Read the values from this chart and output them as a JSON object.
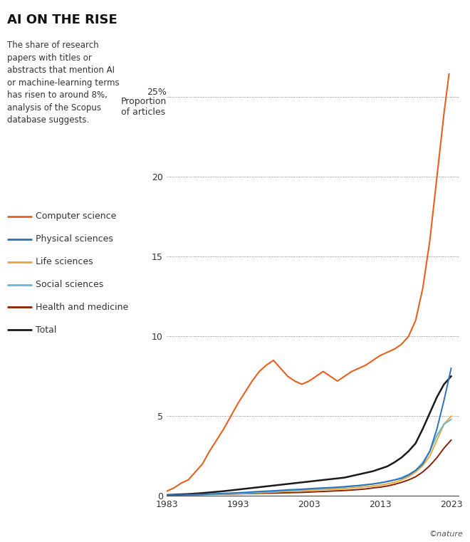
{
  "title": "AI ON THE RISE",
  "subtitle": "The share of research\npapers with titles or\nabstracts that mention AI\nor machine-learning terms\nhas risen to around 8%,\nanalysis of the Scopus\ndatabase suggests.",
  "background_color": "#ffffff",
  "years": [
    1983,
    1984,
    1985,
    1986,
    1987,
    1988,
    1989,
    1990,
    1991,
    1992,
    1993,
    1994,
    1995,
    1996,
    1997,
    1998,
    1999,
    2000,
    2001,
    2002,
    2003,
    2004,
    2005,
    2006,
    2007,
    2008,
    2009,
    2010,
    2011,
    2012,
    2013,
    2014,
    2015,
    2016,
    2017,
    2018,
    2019,
    2020,
    2021,
    2022,
    2023
  ],
  "computer_science": [
    0.3,
    0.5,
    0.8,
    1.0,
    1.5,
    2.0,
    2.8,
    3.5,
    4.2,
    5.0,
    5.8,
    6.5,
    7.2,
    7.8,
    8.2,
    8.5,
    8.0,
    7.5,
    7.2,
    7.0,
    7.2,
    7.5,
    7.8,
    7.5,
    7.2,
    7.5,
    7.8,
    8.0,
    8.2,
    8.5,
    8.8,
    9.0,
    9.2,
    9.5,
    10.0,
    11.0,
    13.0,
    16.0,
    20.0,
    24.0,
    27.5
  ],
  "physical_sciences": [
    0.05,
    0.06,
    0.07,
    0.08,
    0.09,
    0.1,
    0.12,
    0.14,
    0.16,
    0.18,
    0.2,
    0.22,
    0.25,
    0.28,
    0.3,
    0.32,
    0.35,
    0.38,
    0.4,
    0.42,
    0.45,
    0.48,
    0.5,
    0.52,
    0.55,
    0.58,
    0.62,
    0.65,
    0.7,
    0.75,
    0.82,
    0.9,
    1.0,
    1.1,
    1.3,
    1.6,
    2.0,
    2.8,
    4.2,
    6.0,
    8.0
  ],
  "life_sciences": [
    0.05,
    0.06,
    0.07,
    0.08,
    0.09,
    0.1,
    0.11,
    0.12,
    0.13,
    0.14,
    0.15,
    0.16,
    0.18,
    0.2,
    0.22,
    0.24,
    0.26,
    0.28,
    0.3,
    0.32,
    0.35,
    0.38,
    0.4,
    0.42,
    0.44,
    0.46,
    0.5,
    0.54,
    0.58,
    0.62,
    0.68,
    0.75,
    0.85,
    1.0,
    1.2,
    1.5,
    1.9,
    2.5,
    3.5,
    4.5,
    5.0
  ],
  "social_sciences": [
    0.04,
    0.05,
    0.06,
    0.07,
    0.08,
    0.09,
    0.1,
    0.11,
    0.12,
    0.14,
    0.16,
    0.18,
    0.2,
    0.22,
    0.25,
    0.28,
    0.3,
    0.33,
    0.36,
    0.39,
    0.42,
    0.45,
    0.48,
    0.5,
    0.52,
    0.55,
    0.6,
    0.65,
    0.7,
    0.75,
    0.82,
    0.9,
    1.0,
    1.15,
    1.35,
    1.6,
    2.1,
    2.8,
    3.8,
    4.5,
    4.8
  ],
  "health_medicine": [
    0.04,
    0.05,
    0.06,
    0.07,
    0.08,
    0.09,
    0.1,
    0.1,
    0.11,
    0.12,
    0.13,
    0.14,
    0.15,
    0.16,
    0.17,
    0.18,
    0.19,
    0.2,
    0.21,
    0.22,
    0.24,
    0.26,
    0.28,
    0.3,
    0.32,
    0.34,
    0.37,
    0.4,
    0.44,
    0.5,
    0.55,
    0.62,
    0.72,
    0.85,
    1.0,
    1.2,
    1.5,
    1.9,
    2.4,
    3.0,
    3.5
  ],
  "total": [
    0.06,
    0.08,
    0.1,
    0.12,
    0.15,
    0.18,
    0.22,
    0.26,
    0.3,
    0.35,
    0.4,
    0.45,
    0.5,
    0.55,
    0.6,
    0.65,
    0.7,
    0.75,
    0.8,
    0.85,
    0.9,
    0.95,
    1.0,
    1.05,
    1.1,
    1.15,
    1.25,
    1.35,
    1.45,
    1.55,
    1.7,
    1.85,
    2.1,
    2.4,
    2.8,
    3.3,
    4.2,
    5.2,
    6.2,
    7.0,
    7.5
  ],
  "colors": {
    "computer_science": "#E8601C",
    "physical_sciences": "#3070B8",
    "life_sciences": "#E8A838",
    "social_sciences": "#60B8D8",
    "health_medicine": "#8B2000",
    "total": "#1a1a1a"
  },
  "legend": [
    {
      "label": "Computer science",
      "color": "#E8601C"
    },
    {
      "label": "Physical sciences",
      "color": "#3070B8"
    },
    {
      "label": "Life sciences",
      "color": "#E8A838"
    },
    {
      "label": "Social sciences",
      "color": "#60B8D8"
    },
    {
      "label": "Health and medicine",
      "color": "#8B2000"
    },
    {
      "label": "Total",
      "color": "#1a1a1a"
    }
  ],
  "yticks": [
    0,
    5,
    10,
    15,
    20,
    25
  ],
  "xticks": [
    1983,
    1993,
    2003,
    2013,
    2023
  ],
  "xlim": [
    1983,
    2024
  ],
  "ylim": [
    0,
    26.5
  ]
}
